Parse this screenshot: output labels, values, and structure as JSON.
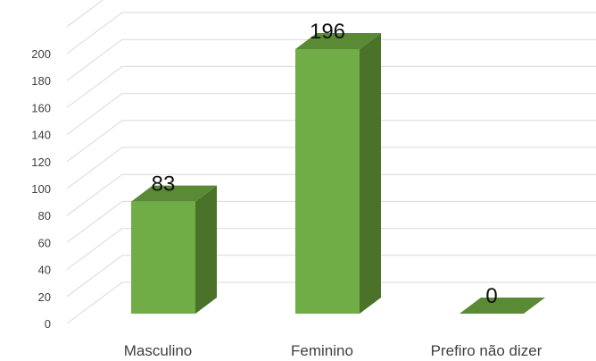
{
  "chart_data": {
    "type": "bar",
    "categories": [
      "Masculino",
      "Feminino",
      "Prefiro não dizer"
    ],
    "values": [
      83,
      196,
      0
    ],
    "data_labels": [
      "83",
      "196",
      "0"
    ],
    "yticks": [
      "0",
      "20",
      "40",
      "60",
      "80",
      "100",
      "120",
      "140",
      "160",
      "180",
      "200"
    ],
    "ylim": [
      0,
      200
    ],
    "style": "3d-column",
    "grid": true,
    "colors": {
      "front": "#70ad47",
      "side": "#4a7329",
      "top": "#5a8a35",
      "grid": "#d9d9d9",
      "text": "#404040"
    }
  }
}
